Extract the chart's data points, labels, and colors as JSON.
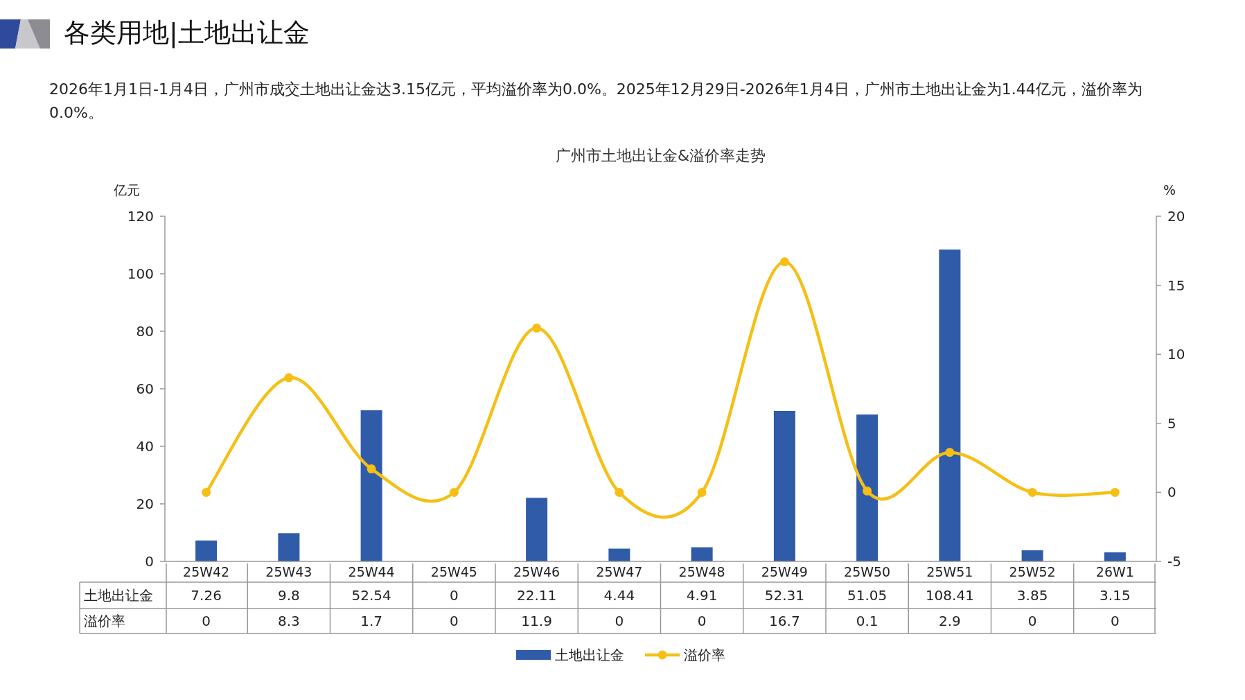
{
  "chart_data": {
    "type": "bar",
    "title": "广州市土地出让金&溢价率走势",
    "subtitle": "2026年1月1日-1月4日，广州市成交土地出让金达3.15亿元，平均溢价率为0.0%。2025年12月29日-2026年1月4日，广州市土地出让金为1.44亿元，溢价率为0.0%。",
    "annotations": [
      "各类用地|土地出让金"
    ],
    "ylabel": "亿元",
    "y2label": "%",
    "categories": [
      "25W42",
      "25W43",
      "25W44",
      "25W45",
      "25W46",
      "25W47",
      "25W48",
      "25W49",
      "25W50",
      "25W51",
      "25W52",
      "26W1"
    ],
    "series": [
      {
        "name": "土地出让金",
        "color": "#2f5ba8",
        "values": [
          7.26,
          9.8,
          52.54,
          0,
          22.11,
          4.44,
          4.91,
          52.31,
          51.05,
          108.41,
          3.85,
          3.15
        ]
      },
      {
        "name": "溢价率",
        "type": "line",
        "axis": "y2",
        "color": "#f5bf16",
        "marker": "circle",
        "values": [
          0,
          8.3,
          1.7,
          0,
          11.9,
          0,
          0,
          16.7,
          0.1,
          2.9,
          0,
          0
        ]
      }
    ],
    "ylim": [
      0,
      120
    ],
    "yticks": [
      0,
      20,
      40,
      60,
      80,
      100,
      120
    ],
    "y2lim": [
      -5,
      20
    ],
    "y2ticks": [
      -5,
      0,
      5,
      10,
      15,
      20
    ],
    "data_labels": true,
    "legend": "bottom"
  }
}
